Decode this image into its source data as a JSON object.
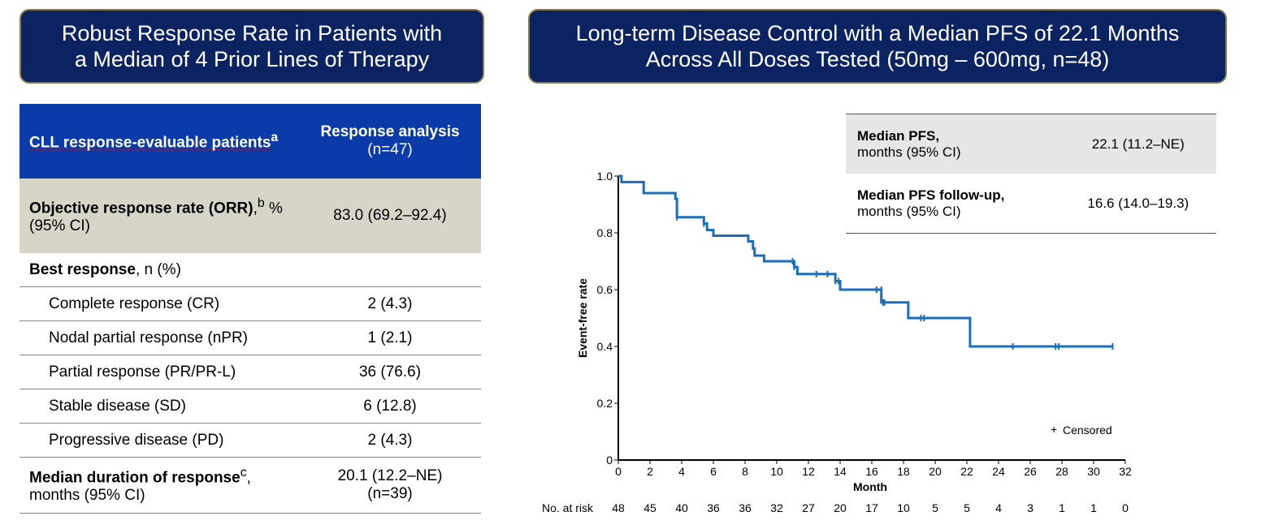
{
  "left_banner": {
    "line1": "Robust Response Rate in Patients with",
    "line2": "a Median of 4 Prior Lines of Therapy"
  },
  "right_banner": {
    "line1": "Long-term Disease Control with a Median PFS of 22.1 Months",
    "line2": "Across All Doses Tested (50mg – 600mg, n=48)"
  },
  "response_table": {
    "header": {
      "col1": "CLL response-evaluable patients",
      "col1_sup": "a",
      "col2_bold": "Response analysis",
      "col2_rest": " (n=47)"
    },
    "orr": {
      "label_bold": "Objective response rate (ORR)",
      "label_sup": "b",
      "label_rest": " % (95% CI)",
      "value": "83.0 (69.2–92.4)"
    },
    "best_response": {
      "label_bold": "Best response",
      "label_rest": ", n (%)"
    },
    "rows": [
      {
        "label": "Complete response (CR)",
        "value": "2 (4.3)"
      },
      {
        "label": "Nodal partial response (nPR)",
        "value": "1 (2.1)"
      },
      {
        "label": "Partial response (PR/PR-L)",
        "value": "36 (76.6)"
      },
      {
        "label": "Stable disease (SD)",
        "value": "6 (12.8)"
      },
      {
        "label": "Progressive disease (PD)",
        "value": "2 (4.3)"
      }
    ],
    "dor": {
      "label_bold": "Median duration of response",
      "label_sup": "c",
      "label_rest": ", months (95% CI)",
      "value1": "20.1 (12.2–NE)",
      "value2": "(n=39)"
    }
  },
  "pfs_table": [
    {
      "label_bold": "Median PFS,",
      "label_rest": "months (95% CI)",
      "value": "22.1 (11.2–NE)"
    },
    {
      "label_bold": "Median PFS follow-up,",
      "label_rest": "months (95% CI)",
      "value": "16.6 (14.0–19.3)"
    }
  ],
  "chart_data": {
    "type": "line",
    "xlabel": "Month",
    "ylabel": "Event-free rate",
    "xlim": [
      0,
      32
    ],
    "ylim": [
      0,
      1.0
    ],
    "xticks": [
      0,
      2,
      4,
      6,
      8,
      10,
      12,
      14,
      16,
      18,
      20,
      22,
      24,
      26,
      28,
      30,
      32
    ],
    "yticks": [
      "0",
      "0.2",
      "0.4",
      "0.6",
      "0.8",
      "1.0"
    ],
    "steps": [
      [
        0,
        1.0
      ],
      [
        0.2,
        0.979
      ],
      [
        1.6,
        0.94
      ],
      [
        3.6,
        0.92
      ],
      [
        3.7,
        0.855
      ],
      [
        5.4,
        0.833
      ],
      [
        5.6,
        0.81
      ],
      [
        6,
        0.79
      ],
      [
        8.2,
        0.77
      ],
      [
        8.5,
        0.745
      ],
      [
        8.6,
        0.72
      ],
      [
        9.2,
        0.7
      ],
      [
        11.1,
        0.68
      ],
      [
        11.3,
        0.655
      ],
      [
        13.7,
        0.63
      ],
      [
        14.0,
        0.6
      ],
      [
        16.6,
        0.555
      ],
      [
        18.3,
        0.5
      ],
      [
        22.2,
        0.4
      ],
      [
        31.2,
        0.4
      ]
    ],
    "censored": [
      [
        3.7,
        0.855
      ],
      [
        5.4,
        0.833
      ],
      [
        11.0,
        0.7
      ],
      [
        11.1,
        0.68
      ],
      [
        12.5,
        0.655
      ],
      [
        13.2,
        0.655
      ],
      [
        13.7,
        0.63
      ],
      [
        13.9,
        0.63
      ],
      [
        16.3,
        0.6
      ],
      [
        16.6,
        0.6
      ],
      [
        16.7,
        0.555
      ],
      [
        16.8,
        0.555
      ],
      [
        19.1,
        0.5
      ],
      [
        19.3,
        0.5
      ],
      [
        24.9,
        0.4
      ],
      [
        27.6,
        0.4
      ],
      [
        27.8,
        0.4
      ],
      [
        31.2,
        0.4
      ]
    ],
    "legend": "Censored",
    "legend_symbol": "+",
    "legend_position": "bottom-right",
    "color": "#1a6fb8",
    "at_risk_label": "No. at risk",
    "at_risk": [
      48,
      45,
      40,
      36,
      36,
      32,
      27,
      20,
      17,
      10,
      5,
      5,
      4,
      3,
      1,
      1,
      0
    ]
  }
}
